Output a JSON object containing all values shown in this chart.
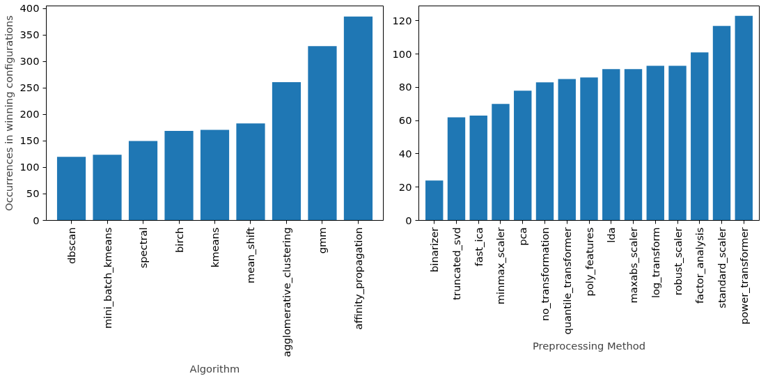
{
  "chart_data": [
    {
      "type": "bar",
      "xlabel": "Algorithm",
      "ylabel": "Occurrences in winning configurations",
      "categories": [
        "dbscan",
        "mini_batch_kmeans",
        "spectral",
        "birch",
        "kmeans",
        "mean_shift",
        "agglomerative_clustering",
        "gmm",
        "affinity_propagation"
      ],
      "values": [
        120,
        124,
        150,
        169,
        171,
        183,
        261,
        329,
        385
      ],
      "color": "#1f77b4",
      "ylim": [
        0,
        405
      ],
      "yticks": [
        0,
        50,
        100,
        150,
        200,
        250,
        300,
        350,
        400
      ]
    },
    {
      "type": "bar",
      "xlabel": "Preprocessing Method",
      "categories": [
        "binarizer",
        "truncated_svd",
        "fast_ica",
        "minmax_scaler",
        "pca",
        "no_transformation",
        "quantile_transformer",
        "poly_features",
        "lda",
        "maxabs_scaler",
        "log_transform",
        "robust_scaler",
        "factor_analysis",
        "standard_scaler",
        "power_transformer"
      ],
      "values": [
        24,
        62,
        63,
        70,
        78,
        83,
        85,
        86,
        91,
        91,
        93,
        93,
        101,
        117,
        123
      ],
      "color": "#1f77b4",
      "ylim": [
        0,
        129
      ],
      "yticks": [
        0,
        20,
        40,
        60,
        80,
        100,
        120
      ]
    }
  ]
}
